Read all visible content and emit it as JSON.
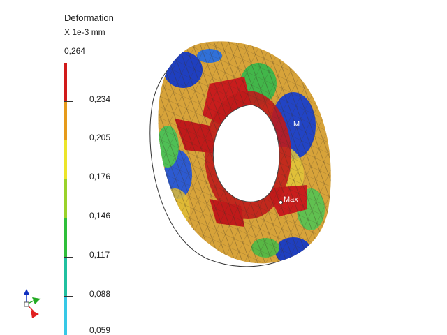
{
  "legend": {
    "title": "Deformation",
    "units": "X 1e-3 mm",
    "max_value": "0,264",
    "tick_labels": [
      "0,234",
      "0,205",
      "0,176",
      "0,146",
      "0,117",
      "0,088",
      "0,059"
    ],
    "colors": [
      "#d11a1a",
      "#e69a1a",
      "#ece52a",
      "#9ad22a",
      "#2fbf3a",
      "#20c0a0",
      "#37c8e6"
    ]
  },
  "model": {
    "max_label": "Max",
    "min_label_partial": "M"
  },
  "triad": {
    "x_color": "#e02020",
    "y_color": "#22aa22",
    "z_color": "#1030c0"
  }
}
